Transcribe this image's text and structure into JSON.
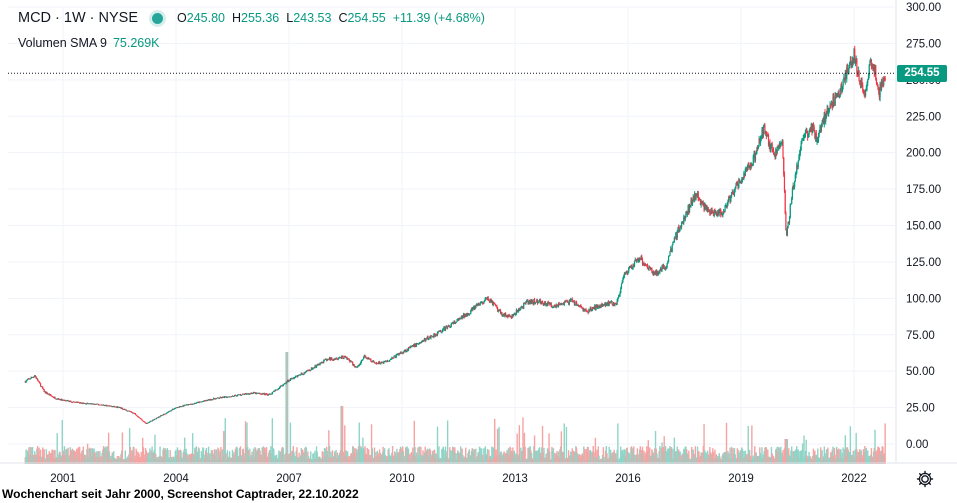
{
  "legend": {
    "symbol": "MCD · 1W · NYSE",
    "open_key": "O",
    "open": "245.80",
    "high_key": "H",
    "high": "255.36",
    "low_key": "L",
    "low": "243.53",
    "close_key": "C",
    "close": "254.55",
    "change": "+11.39 (+4.68%)",
    "volume_label": "Volumen SMA 9",
    "volume_value": "75.269K"
  },
  "last_price_badge": "254.55",
  "caption": "Wochenchart seit Jahr 2000, Screenshot Captrader, 22.10.2022",
  "colors": {
    "up": "#089981",
    "down": "#f23645",
    "vol_up": "#8fd4c7",
    "vol_down": "#f5a3a3",
    "grid": "#f0f3fa",
    "dotted_line": "#131722"
  },
  "icons": {
    "settings": "gear-icon",
    "status": "status-dot"
  },
  "chart_data": {
    "type": "candlestick",
    "interval": "1W",
    "x_ticks": [
      "2001",
      "2004",
      "2007",
      "2010",
      "2013",
      "2016",
      "2019",
      "2022"
    ],
    "y_ticks": [
      "0.00",
      "25.00",
      "50.00",
      "75.00",
      "100.00",
      "125.00",
      "150.00",
      "175.00",
      "200.00",
      "225.00",
      "250.00",
      "275.00",
      "300.00"
    ],
    "ylim": [
      -15,
      300
    ],
    "xlim": [
      2000.0,
      2022.83
    ],
    "last_price": 254.55,
    "price_path": [
      [
        2000.0,
        43
      ],
      [
        2000.25,
        47
      ],
      [
        2000.5,
        36
      ],
      [
        2000.75,
        32
      ],
      [
        2001.0,
        30
      ],
      [
        2001.5,
        28
      ],
      [
        2002.0,
        27
      ],
      [
        2002.5,
        25
      ],
      [
        2002.9,
        21
      ],
      [
        2003.2,
        14
      ],
      [
        2003.5,
        18
      ],
      [
        2004.0,
        25
      ],
      [
        2004.5,
        28
      ],
      [
        2005.0,
        31
      ],
      [
        2005.5,
        33
      ],
      [
        2006.0,
        35
      ],
      [
        2006.5,
        34
      ],
      [
        2007.0,
        44
      ],
      [
        2007.5,
        50
      ],
      [
        2008.0,
        58
      ],
      [
        2008.5,
        60
      ],
      [
        2008.8,
        52
      ],
      [
        2009.0,
        60
      ],
      [
        2009.3,
        55
      ],
      [
        2009.6,
        57
      ],
      [
        2010.0,
        63
      ],
      [
        2010.5,
        70
      ],
      [
        2011.0,
        77
      ],
      [
        2011.5,
        85
      ],
      [
        2012.0,
        95
      ],
      [
        2012.3,
        100
      ],
      [
        2012.6,
        90
      ],
      [
        2012.9,
        87
      ],
      [
        2013.3,
        97
      ],
      [
        2013.6,
        98
      ],
      [
        2014.0,
        95
      ],
      [
        2014.5,
        98
      ],
      [
        2014.9,
        91
      ],
      [
        2015.3,
        96
      ],
      [
        2015.7,
        97
      ],
      [
        2015.9,
        115
      ],
      [
        2016.3,
        128
      ],
      [
        2016.7,
        117
      ],
      [
        2017.0,
        122
      ],
      [
        2017.3,
        145
      ],
      [
        2017.8,
        172
      ],
      [
        2018.1,
        160
      ],
      [
        2018.5,
        158
      ],
      [
        2018.9,
        178
      ],
      [
        2019.3,
        193
      ],
      [
        2019.6,
        216
      ],
      [
        2019.9,
        197
      ],
      [
        2020.1,
        210
      ],
      [
        2020.2,
        140
      ],
      [
        2020.35,
        170
      ],
      [
        2020.6,
        208
      ],
      [
        2020.9,
        218
      ],
      [
        2021.0,
        210
      ],
      [
        2021.3,
        230
      ],
      [
        2021.6,
        240
      ],
      [
        2021.9,
        262
      ],
      [
        2022.0,
        268
      ],
      [
        2022.15,
        250
      ],
      [
        2022.3,
        240
      ],
      [
        2022.45,
        263
      ],
      [
        2022.55,
        258
      ],
      [
        2022.65,
        240
      ],
      [
        2022.75,
        248
      ],
      [
        2022.83,
        254.55
      ]
    ],
    "volume_note": "weekly volume bars along bottom band; peaks near 2007 and 2020"
  }
}
